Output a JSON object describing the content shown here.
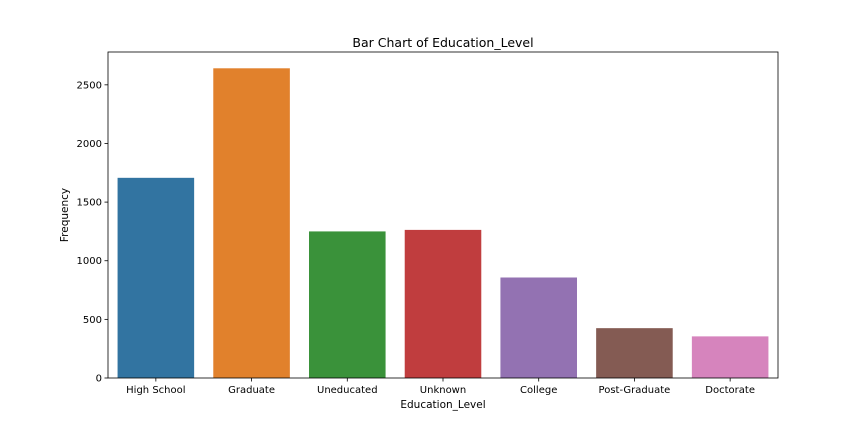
{
  "chart_data": {
    "type": "bar",
    "title": "Bar Chart of Education_Level",
    "xlabel": "Education_Level",
    "ylabel": "Frequency",
    "categories": [
      "High School",
      "Graduate",
      "Uneducated",
      "Unknown",
      "College",
      "Post-Graduate",
      "Doctorate"
    ],
    "values": [
      1707,
      2641,
      1250,
      1263,
      857,
      425,
      355
    ],
    "colors": [
      "#3274a1",
      "#e1812c",
      "#3a923a",
      "#c03d3e",
      "#9372b2",
      "#845b53",
      "#d684bd"
    ],
    "ylim": [
      0,
      2780
    ],
    "yticks": [
      0,
      500,
      1000,
      1500,
      2000,
      2500
    ],
    "grid": false,
    "legend": "none"
  }
}
